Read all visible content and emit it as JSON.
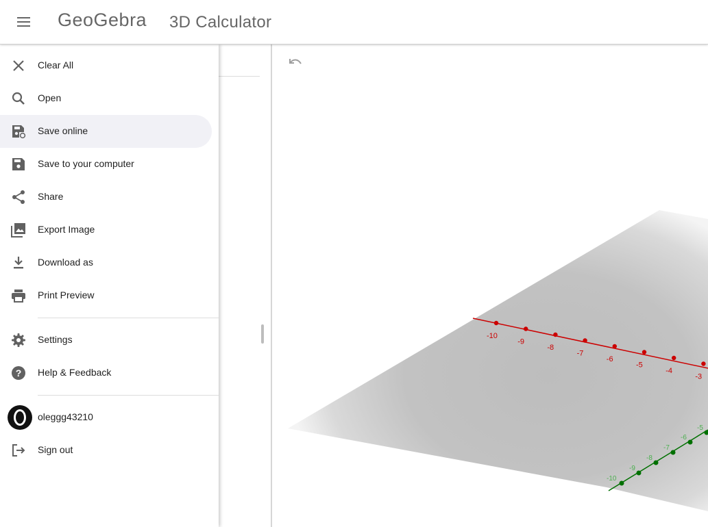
{
  "header": {
    "brand": "GeoGebra",
    "title": "3D Calculator"
  },
  "menu": {
    "items": [
      {
        "label": "Clear All",
        "icon": "close-icon"
      },
      {
        "label": "Open",
        "icon": "search-icon"
      },
      {
        "label": "Save online",
        "icon": "save-online-icon",
        "active": true
      },
      {
        "label": "Save to your computer",
        "icon": "save-icon"
      },
      {
        "label": "Share",
        "icon": "share-icon"
      },
      {
        "label": "Export Image",
        "icon": "image-icon"
      },
      {
        "label": "Download as",
        "icon": "download-icon"
      },
      {
        "label": "Print Preview",
        "icon": "print-icon"
      },
      {
        "label": "Settings",
        "icon": "gear-icon"
      },
      {
        "label": "Help & Feedback",
        "icon": "help-icon"
      }
    ],
    "user": {
      "name": "oleggg43210"
    },
    "sign_out": "Sign out"
  },
  "view3d": {
    "x_axis_color": "#cc0000",
    "y_axis_color": "#007000",
    "x_ticks": [
      "-10",
      "-9",
      "-8",
      "-7",
      "-6",
      "-5",
      "-4",
      "-3"
    ],
    "y_ticks": [
      "-10",
      "-9",
      "-8",
      "-7",
      "-6",
      "-5"
    ]
  }
}
